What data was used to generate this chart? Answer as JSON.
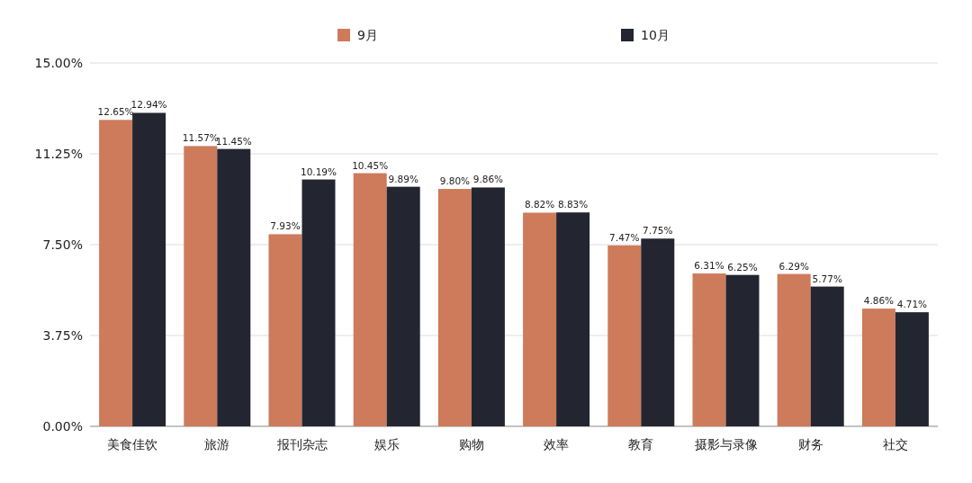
{
  "chart_data": {
    "type": "bar",
    "categories": [
      "美食佳饮",
      "旅游",
      "报刊杂志",
      "娱乐",
      "购物",
      "效率",
      "教育",
      "摄影与录像",
      "财务",
      "社交"
    ],
    "series": [
      {
        "name": "9月",
        "color": "#cd7b5b",
        "values": [
          12.65,
          11.57,
          7.93,
          10.45,
          9.8,
          8.82,
          7.47,
          6.31,
          6.29,
          4.86
        ],
        "value_labels": [
          "12.65%",
          "11.57%",
          "7.93%",
          "10.45%",
          "9.80%",
          "8.82%",
          "7.47%",
          "6.31%",
          "6.29%",
          "4.86%"
        ]
      },
      {
        "name": "10月",
        "color": "#232631",
        "values": [
          12.94,
          11.45,
          10.19,
          9.89,
          9.86,
          8.83,
          7.75,
          6.25,
          5.77,
          4.71
        ],
        "value_labels": [
          "12.94%",
          "11.45%",
          "10.19%",
          "9.89%",
          "9.86%",
          "8.83%",
          "7.75%",
          "6.25%",
          "5.77%",
          "4.71%"
        ]
      }
    ],
    "ylim": [
      0,
      15
    ],
    "yticks": [
      {
        "value": 0,
        "label": "0.00%"
      },
      {
        "value": 3.75,
        "label": "3.75%"
      },
      {
        "value": 7.5,
        "label": "7.50%"
      },
      {
        "value": 11.25,
        "label": "11.25%"
      },
      {
        "value": 15,
        "label": "15.00%"
      }
    ],
    "grid": "y",
    "legend": "top"
  }
}
